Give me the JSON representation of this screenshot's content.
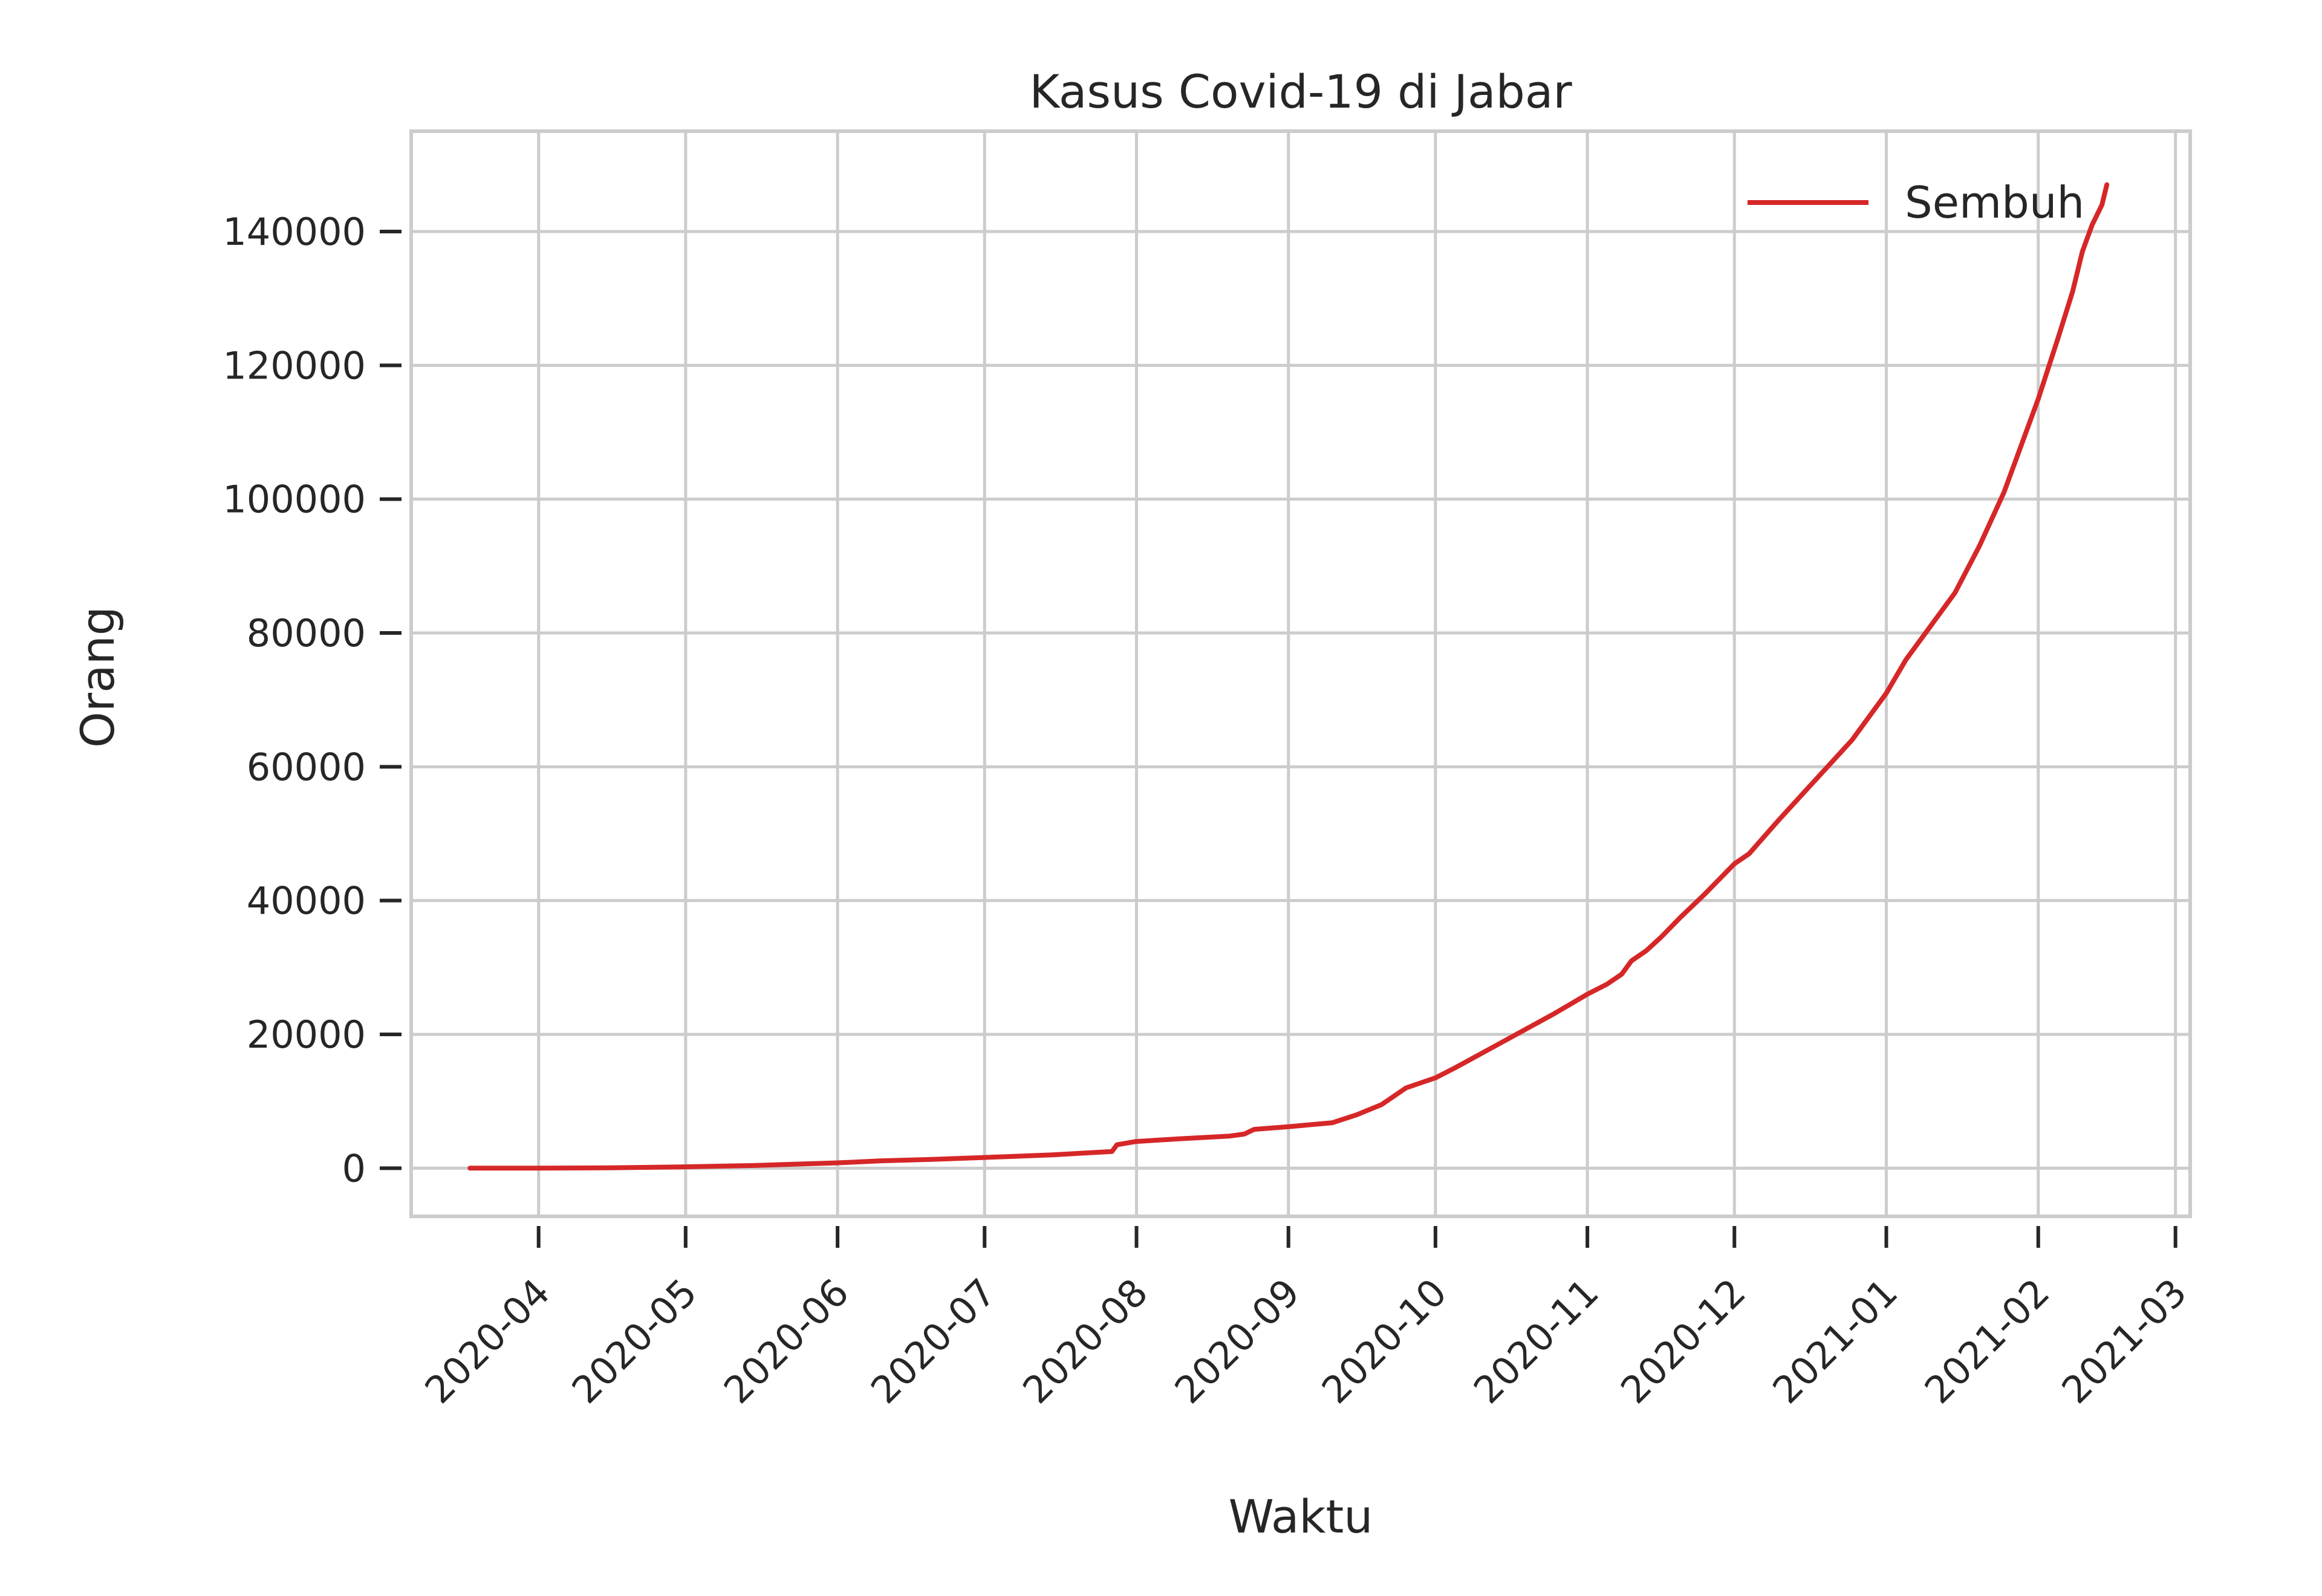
{
  "chart_data": {
    "type": "line",
    "title": "Kasus Covid-19 di Jabar",
    "xlabel": "Waktu",
    "ylabel": "Orang",
    "x_ticks": [
      "2020-04",
      "2020-05",
      "2020-06",
      "2020-07",
      "2020-08",
      "2020-09",
      "2020-10",
      "2020-11",
      "2020-12",
      "2021-01",
      "2021-02",
      "2021-03"
    ],
    "y_ticks": [
      0,
      20000,
      40000,
      60000,
      80000,
      100000,
      120000,
      140000
    ],
    "xlim": [
      "2020-03-06",
      "2021-03-04"
    ],
    "ylim": [
      -7200,
      155000
    ],
    "grid": true,
    "legend_position": "top-right",
    "series": [
      {
        "name": "Sembuh",
        "color": "#d62728",
        "x": [
          "2020-03-18",
          "2020-04-01",
          "2020-04-15",
          "2020-05-01",
          "2020-05-15",
          "2020-06-01",
          "2020-06-10",
          "2020-06-20",
          "2020-07-01",
          "2020-07-15",
          "2020-07-27",
          "2020-07-28",
          "2020-08-01",
          "2020-08-10",
          "2020-08-20",
          "2020-08-23",
          "2020-08-25",
          "2020-09-01",
          "2020-09-10",
          "2020-09-15",
          "2020-09-20",
          "2020-09-25",
          "2020-10-01",
          "2020-10-05",
          "2020-10-10",
          "2020-10-15",
          "2020-10-20",
          "2020-10-25",
          "2020-11-01",
          "2020-11-05",
          "2020-11-08",
          "2020-11-10",
          "2020-11-13",
          "2020-11-16",
          "2020-11-20",
          "2020-11-25",
          "2020-12-01",
          "2020-12-04",
          "2020-12-07",
          "2020-12-10",
          "2020-12-15",
          "2020-12-20",
          "2020-12-25",
          "2021-01-01",
          "2021-01-05",
          "2021-01-10",
          "2021-01-15",
          "2021-01-20",
          "2021-01-25",
          "2021-02-01",
          "2021-02-05",
          "2021-02-08",
          "2021-02-10",
          "2021-02-12",
          "2021-02-14",
          "2021-02-15"
        ],
        "y": [
          0,
          0,
          50,
          200,
          400,
          800,
          1100,
          1300,
          1600,
          2000,
          2500,
          3500,
          4000,
          4400,
          4800,
          5100,
          5800,
          6200,
          6800,
          8000,
          9500,
          12000,
          13500,
          15000,
          17000,
          19000,
          21000,
          23000,
          26000,
          27500,
          29000,
          31000,
          32500,
          34500,
          37500,
          41000,
          45500,
          47000,
          49500,
          52000,
          56000,
          60000,
          64000,
          71000,
          76000,
          81000,
          86000,
          93000,
          101000,
          115000,
          124000,
          131000,
          137000,
          141000,
          144000,
          147000
        ]
      }
    ]
  }
}
